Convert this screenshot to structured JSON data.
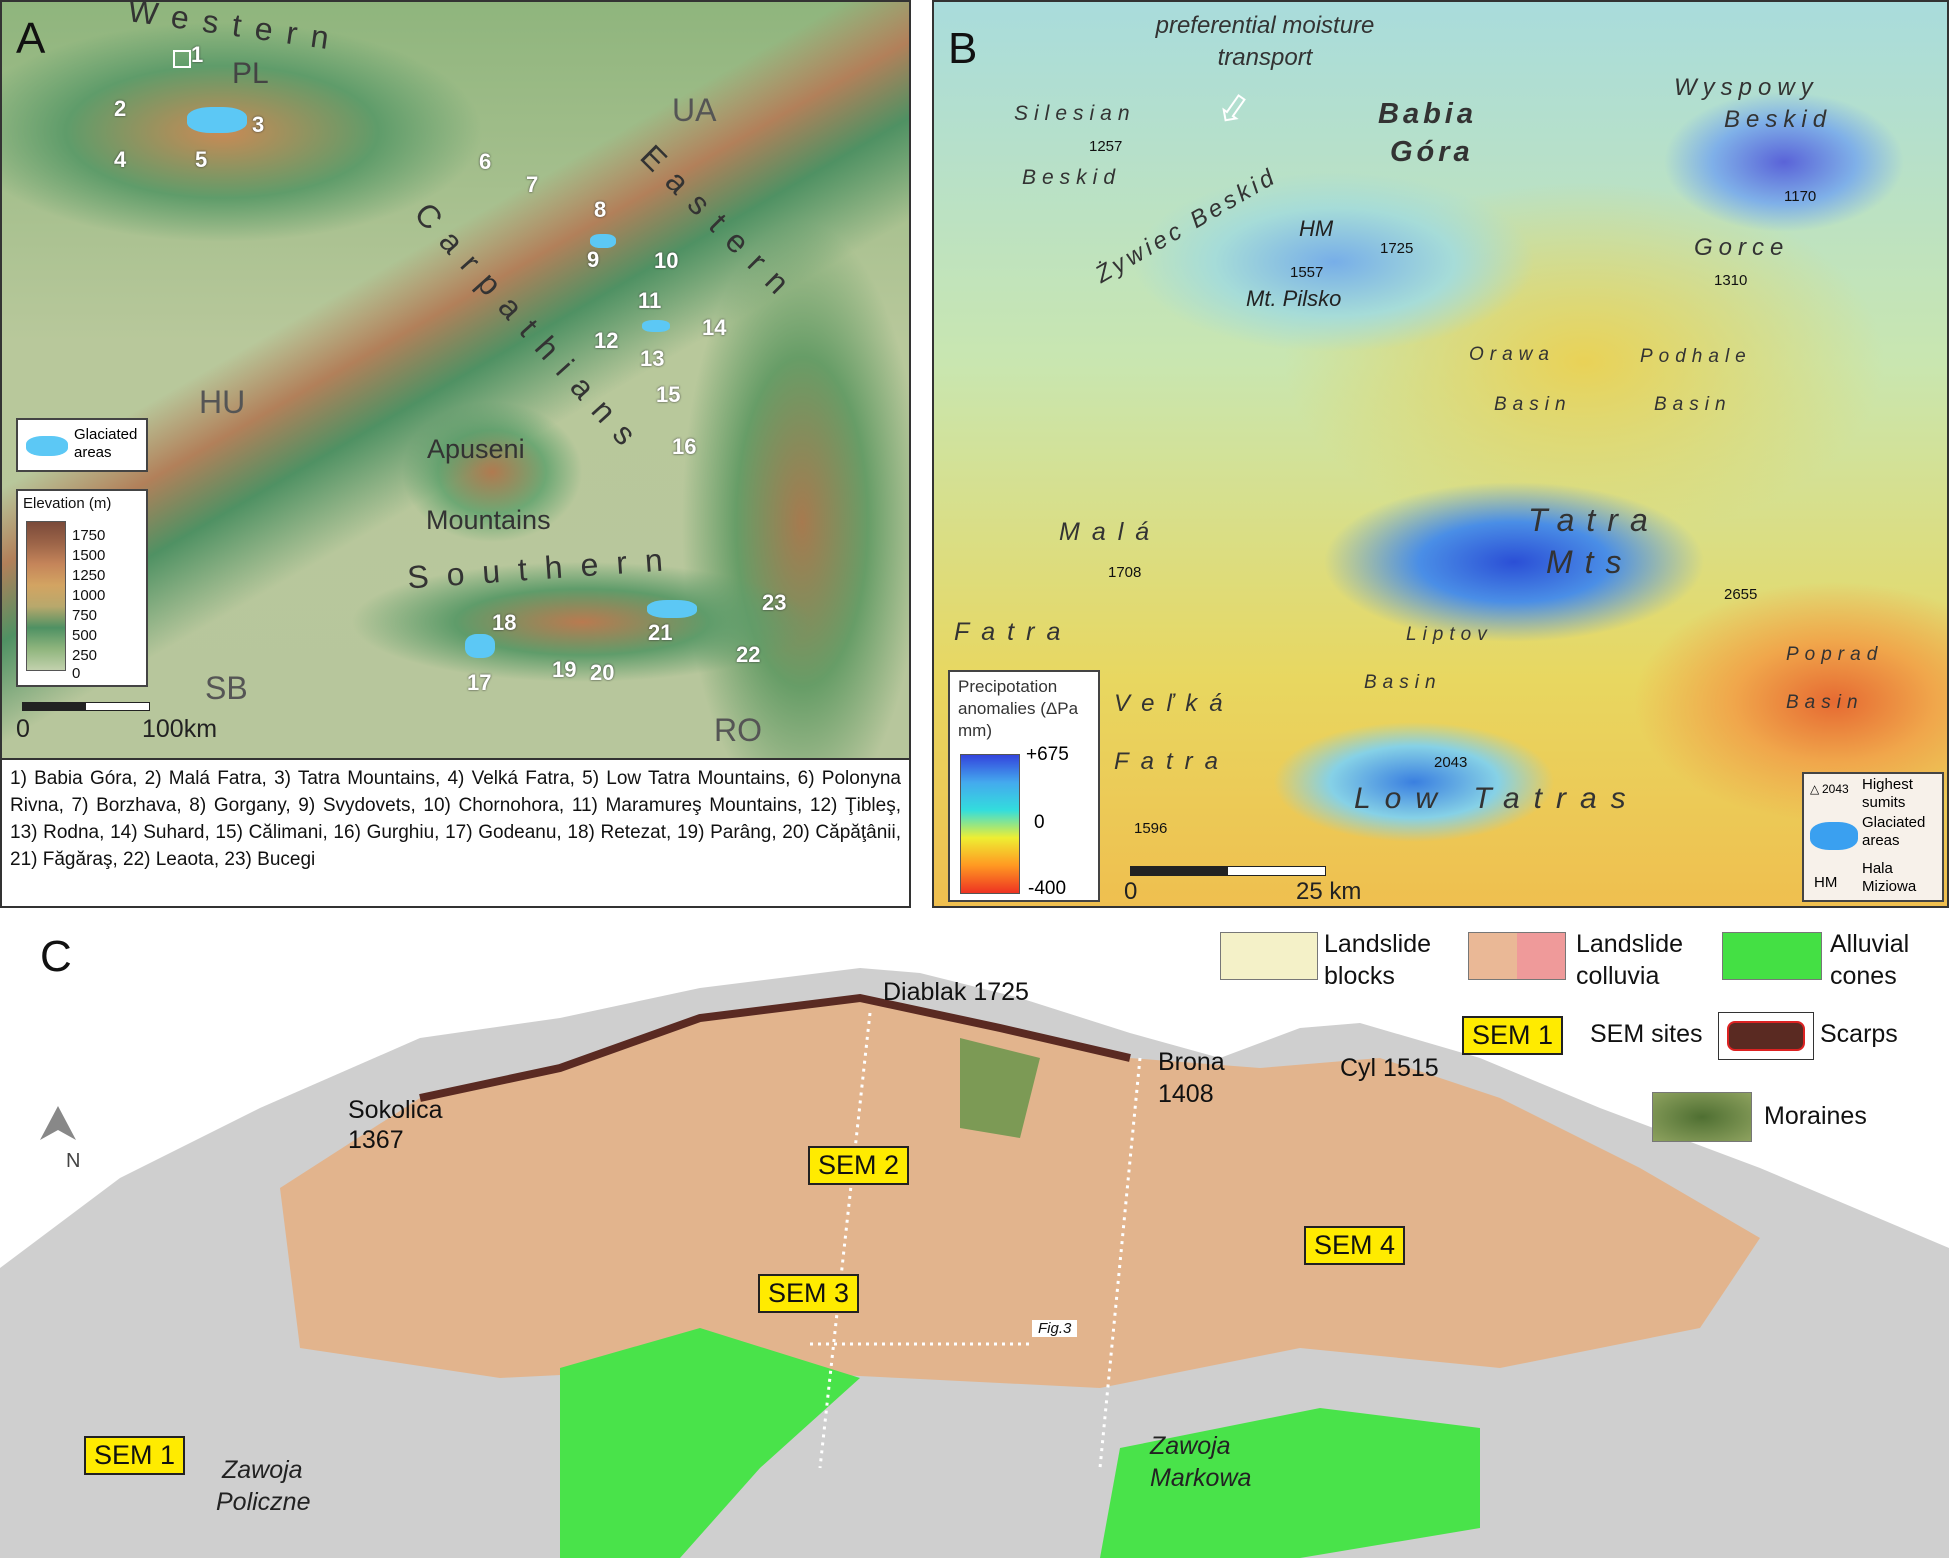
{
  "panel_a": {
    "letter": "A",
    "numbers": [
      "1",
      "2",
      "3",
      "4",
      "5",
      "6",
      "7",
      "8",
      "9",
      "10",
      "11",
      "12",
      "13",
      "14",
      "15",
      "16",
      "17",
      "18",
      "19",
      "20",
      "21",
      "22",
      "23"
    ],
    "regions": {
      "western": "Western",
      "eastern": "Eastern",
      "carpathians": "Carpathians",
      "southern": "Southern",
      "apuseni": "Apuseni",
      "mountains": "Mountains"
    },
    "countries": {
      "pl": "PL",
      "ua": "UA",
      "hu": "HU",
      "sb": "SB",
      "ro": "RO"
    },
    "glaciated_legend": "Glaciated areas",
    "elevation_legend": {
      "title": "Elevation (m)",
      "ticks": [
        "1750",
        "1500",
        "1250",
        "1000",
        "750",
        "500",
        "250",
        "0"
      ],
      "colors": [
        "#7a4a3a",
        "#9c6448",
        "#c5855a",
        "#d3a462",
        "#b8a86c",
        "#4f9163",
        "#8fb57d",
        "#c2d1ad"
      ]
    },
    "scale": {
      "zero": "0",
      "label": "100km"
    },
    "caption": "1) Babia Góra, 2) Malá Fatra, 3) Tatra Mountains, 4) Velká Fatra, 5) Low Tatra Mountains, 6) Polonyna Rivna, 7) Borzhava, 8) Gorgany, 9) Svydovets, 10) Chornohora, 11) Maramureş Mountains, 12) Ţibleş, 13) Rodna, 14) Suhard, 15) Călimani, 16) Gurghiu, 17) Godeanu, 18) Retezat, 19) Parâng, 20) Căpăţânii, 21) Făgăraş, 22) Leaota, 23) Bucegi"
  },
  "panel_b": {
    "letter": "B",
    "arrow_label": "preferential moisture transport",
    "names": {
      "silesian": "Silesian",
      "beskid1": "Beskid",
      "babia": "Babia",
      "gora": "Góra",
      "wyspowy": "Wyspowy",
      "beskid2": "Beskid",
      "zywiec": "Żywiec Beskid",
      "hm": "HM",
      "pilsko": "Mt. Pilsko",
      "gorce": "Gorce",
      "orawa": "Orawa",
      "basin1": "Basin",
      "podhale": "Podhale",
      "basin2": "Basin",
      "tatra": "Tatra",
      "mts": "Mts",
      "mala": "Malá",
      "fatra1": "Fatra",
      "liptov": "Liptov",
      "basin3": "Basin",
      "poprad": "Poprad",
      "basin4": "Basin",
      "velka": "Veľká",
      "fatra2": "Fatra",
      "low_tatras": "Low Tatras"
    },
    "summits": [
      "1257",
      "1725",
      "1557",
      "1170",
      "1310",
      "1708",
      "2655",
      "2043",
      "1596"
    ],
    "precip_legend": {
      "title": "Precipotation anomalies (ΔPa mm)",
      "max": "+675",
      "mid": "0",
      "min": "-400",
      "colors": [
        "#3344dd",
        "#44aaee",
        "#33dddd",
        "#eeee33",
        "#ff9922",
        "#ee3322"
      ]
    },
    "symbol_legend": {
      "summit_value": "2043",
      "summit_label": "Highest sumits",
      "glaciated_label": "Glaciated areas",
      "hm": "HM",
      "hm_label": "Hala Miziowa"
    },
    "scale": {
      "zero": "0",
      "label": "25 km"
    }
  },
  "panel_c": {
    "letter": "C",
    "north": "N",
    "peaks": {
      "diablak": "Diablak 1725",
      "sokolica": "Sokolica",
      "sokolica_h": "1367",
      "brona": "Brona",
      "brona_h": "1408",
      "cyl": "Cyl 1515"
    },
    "sem": [
      "SEM 1",
      "SEM 2",
      "SEM 3",
      "SEM 4"
    ],
    "fig_ref": "Fig.3",
    "places": {
      "policzne1": "Zawoja",
      "policzne2": "Policzne",
      "markowa1": "Zawoja",
      "markowa2": "Markowa"
    },
    "legend": [
      {
        "label": "Landslide blocks",
        "color": "#f4f1c8"
      },
      {
        "label": "Landslide colluvia",
        "color": "#eab896"
      },
      {
        "label": "Alluvial cones",
        "color": "#44e044"
      },
      {
        "label": "SEM sites",
        "key": "SEM 1",
        "color": "#ffeb00"
      },
      {
        "label": "Scarps",
        "color": "#5a2a22"
      },
      {
        "label": "Moraines",
        "color": "#6f8f4a"
      }
    ]
  }
}
